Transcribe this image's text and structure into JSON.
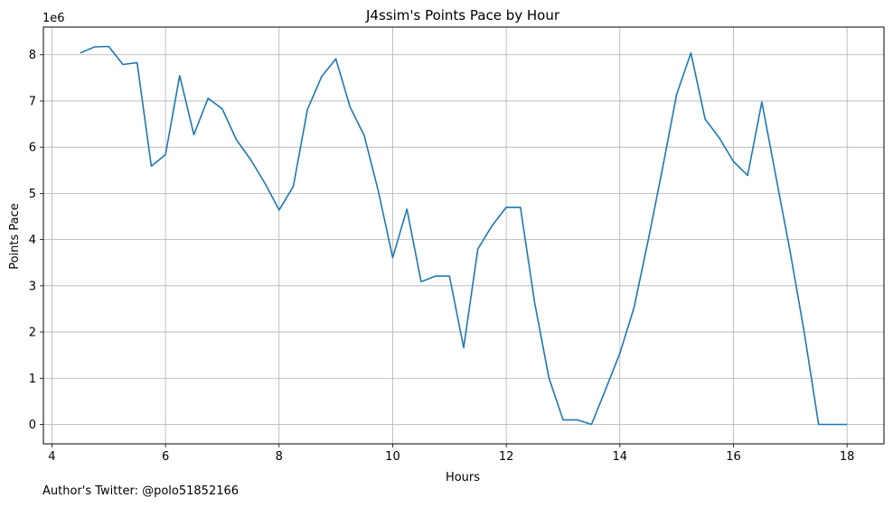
{
  "footer": {
    "author": "Author's Twitter: @polo51852166"
  },
  "chart_data": {
    "type": "line",
    "title": "J4ssim's Points Pace by Hour",
    "xlabel": "Hours",
    "ylabel": "Points Pace",
    "y_offset_label": "1e6",
    "xlim": [
      3.85,
      18.65
    ],
    "ylim": [
      -0.42,
      8.6
    ],
    "xticks": [
      4,
      6,
      8,
      10,
      12,
      14,
      16,
      18
    ],
    "yticks": [
      0,
      1,
      2,
      3,
      4,
      5,
      6,
      7,
      8
    ],
    "grid": true,
    "line_color": "#1f77b4",
    "series": [
      {
        "x": [
          4.5,
          4.75,
          5.0,
          5.25,
          5.5,
          5.75,
          6.0,
          6.25,
          6.5,
          6.75,
          7.0,
          7.25,
          7.5,
          7.75,
          8.0,
          8.25,
          8.5,
          8.75,
          9.0,
          9.25,
          9.5,
          9.75,
          10.0,
          10.25,
          10.5,
          10.75,
          11.0,
          11.25,
          11.5,
          11.75,
          12.0,
          12.25,
          12.5,
          12.75,
          13.0,
          13.25,
          13.5,
          13.75,
          14.0,
          14.25,
          14.5,
          14.75,
          15.0,
          15.25,
          15.5,
          15.75,
          16.0,
          16.25,
          16.5,
          16.75,
          17.0,
          17.25,
          17.5,
          17.75,
          18.0
        ],
        "y": [
          8.04,
          8.17,
          8.18,
          7.79,
          7.83,
          5.59,
          5.84,
          7.55,
          6.27,
          7.06,
          6.83,
          6.16,
          5.73,
          5.22,
          4.64,
          5.15,
          6.82,
          7.53,
          7.91,
          6.87,
          6.25,
          5.04,
          3.61,
          4.66,
          3.09,
          3.21,
          3.21,
          1.66,
          3.8,
          4.3,
          4.7,
          4.7,
          2.64,
          1.01,
          0.1,
          0.1,
          0.0,
          0.76,
          1.54,
          2.53,
          3.99,
          5.53,
          7.14,
          8.04,
          6.61,
          6.2,
          5.69,
          5.39,
          6.98,
          5.35,
          3.73,
          1.97,
          0.0,
          0.0,
          0.0
        ]
      }
    ]
  }
}
